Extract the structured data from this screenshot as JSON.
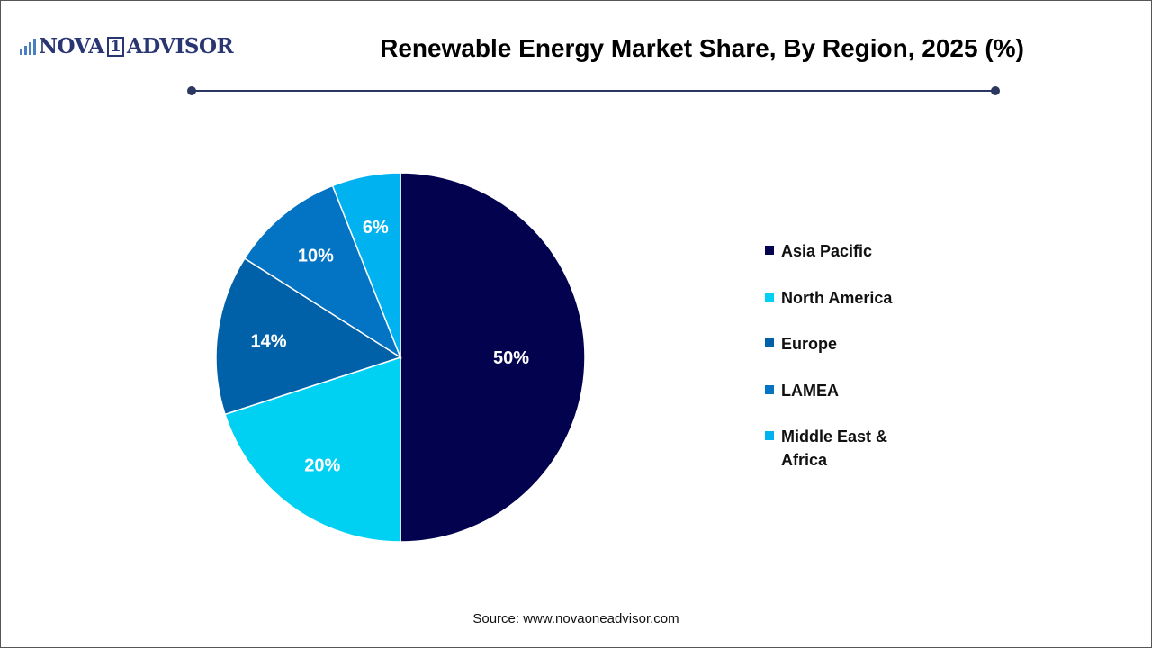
{
  "logo": {
    "text_a": "NOVA",
    "text_one": "1",
    "text_b": "ADVISOR"
  },
  "source": "Source: www.novaoneadvisor.com",
  "chart_data": {
    "type": "pie",
    "title": "Renewable Energy Market Share, By Region, 2025 (%)",
    "legend_placement": "right",
    "slices": [
      {
        "label": "Asia Pacific",
        "value": 50,
        "display": "50%",
        "color": "#03024f"
      },
      {
        "label": "North America",
        "value": 20,
        "display": "20%",
        "color": "#00d0f2"
      },
      {
        "label": "Europe",
        "value": 14,
        "display": "14%",
        "color": "#0061a8"
      },
      {
        "label": "LAMEA",
        "value": 10,
        "display": "10%",
        "color": "#0373c4"
      },
      {
        "label": "Middle East & Africa",
        "value": 6,
        "display": "6%",
        "color": "#00b2ef"
      }
    ]
  }
}
